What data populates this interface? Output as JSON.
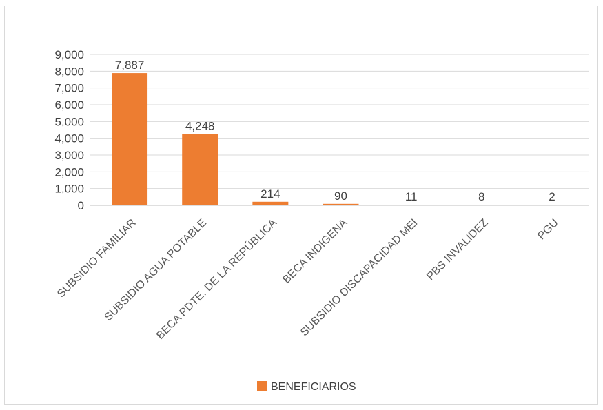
{
  "chart_data": {
    "type": "bar",
    "categories": [
      "SUBSIDIO FAMILIAR",
      "SUBSIDIO AGUA POTABLE",
      "BECA PDTE. DE LA REPÚBLICA",
      "BECA INDIGENA",
      "SUBSIDIO DISCAPACIDAD MEI",
      "PBS INVALIDEZ",
      "PGU"
    ],
    "series": [
      {
        "name": "BENEFICIARIOS",
        "values": [
          7887,
          4248,
          214,
          90,
          11,
          8,
          2
        ],
        "color": "#ed7d31"
      }
    ],
    "data_labels": [
      "7,887",
      "4,248",
      "214",
      "90",
      "11",
      "8",
      "2"
    ],
    "ylim": [
      0,
      9000
    ],
    "yticks": [
      0,
      1000,
      2000,
      3000,
      4000,
      5000,
      6000,
      7000,
      8000,
      9000
    ],
    "ytick_labels": [
      "0",
      "1,000",
      "2,000",
      "3,000",
      "4,000",
      "5,000",
      "6,000",
      "7,000",
      "8,000",
      "9,000"
    ],
    "grid": true,
    "legend": "bottom",
    "title": "",
    "xlabel": "",
    "ylabel": ""
  }
}
